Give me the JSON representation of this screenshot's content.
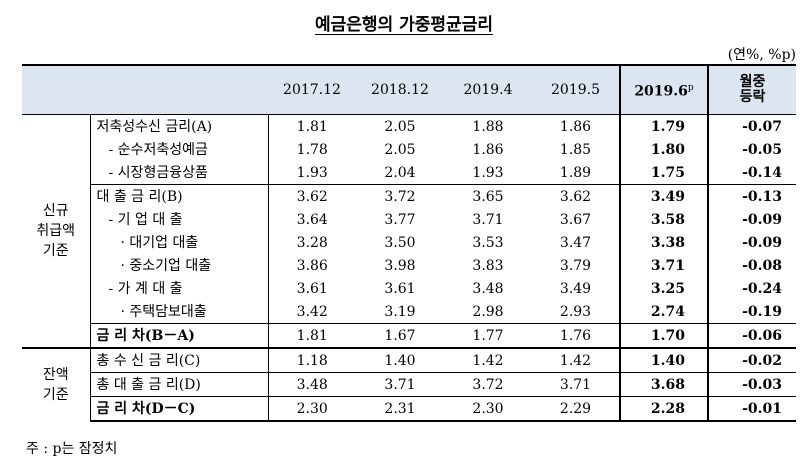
{
  "title": "예금은행의 가중평균금리",
  "unit": "(연%, %p)",
  "headers": [
    "2017.12",
    "2018.12",
    "2019.4",
    "2019.5",
    "2019.6",
    "p",
    "월중",
    "등락"
  ],
  "groups": {
    "new": [
      "신규",
      "취급액",
      "기준"
    ],
    "bal": [
      "잔액",
      "기준"
    ]
  },
  "rows": [
    {
      "label": "저축성수신 금리(A)",
      "values": [
        "1.81",
        "2.05",
        "1.88",
        "1.86",
        "1.79",
        "-0.07"
      ]
    },
    {
      "label": "- 순수저축성예금",
      "values": [
        "1.78",
        "2.05",
        "1.86",
        "1.85",
        "1.80",
        "-0.05"
      ]
    },
    {
      "label": "- 시장형금융상품",
      "values": [
        "1.93",
        "2.04",
        "1.93",
        "1.89",
        "1.75",
        "-0.14"
      ]
    },
    {
      "label": "대 출 금 리(B)",
      "values": [
        "3.62",
        "3.72",
        "3.65",
        "3.62",
        "3.49",
        "-0.13"
      ]
    },
    {
      "label": "- 기 업 대 출",
      "values": [
        "3.64",
        "3.77",
        "3.71",
        "3.67",
        "3.58",
        "-0.09"
      ]
    },
    {
      "label": "· 대기업 대출",
      "values": [
        "3.28",
        "3.50",
        "3.53",
        "3.47",
        "3.38",
        "-0.09"
      ]
    },
    {
      "label": "· 중소기업 대출",
      "values": [
        "3.86",
        "3.98",
        "3.83",
        "3.79",
        "3.71",
        "-0.08"
      ]
    },
    {
      "label": "- 가 계 대 출",
      "values": [
        "3.61",
        "3.61",
        "3.48",
        "3.49",
        "3.25",
        "-0.24"
      ]
    },
    {
      "label": "· 주택담보대출",
      "values": [
        "3.42",
        "3.19",
        "2.98",
        "2.93",
        "2.74",
        "-0.19"
      ]
    },
    {
      "label": "금 리 차(B－A)",
      "values": [
        "1.81",
        "1.67",
        "1.77",
        "1.76",
        "1.70",
        "-0.06"
      ]
    },
    {
      "label": "총 수 신 금 리(C)",
      "values": [
        "1.18",
        "1.40",
        "1.42",
        "1.42",
        "1.40",
        "-0.02"
      ]
    },
    {
      "label": "총 대 출 금 리(D)",
      "values": [
        "3.48",
        "3.71",
        "3.72",
        "3.71",
        "3.68",
        "-0.03"
      ]
    },
    {
      "label": "금 리 차(D－C)",
      "values": [
        "2.30",
        "2.31",
        "2.30",
        "2.29",
        "2.28",
        "-0.01"
      ]
    }
  ],
  "note": "주 : p는 잠정치"
}
